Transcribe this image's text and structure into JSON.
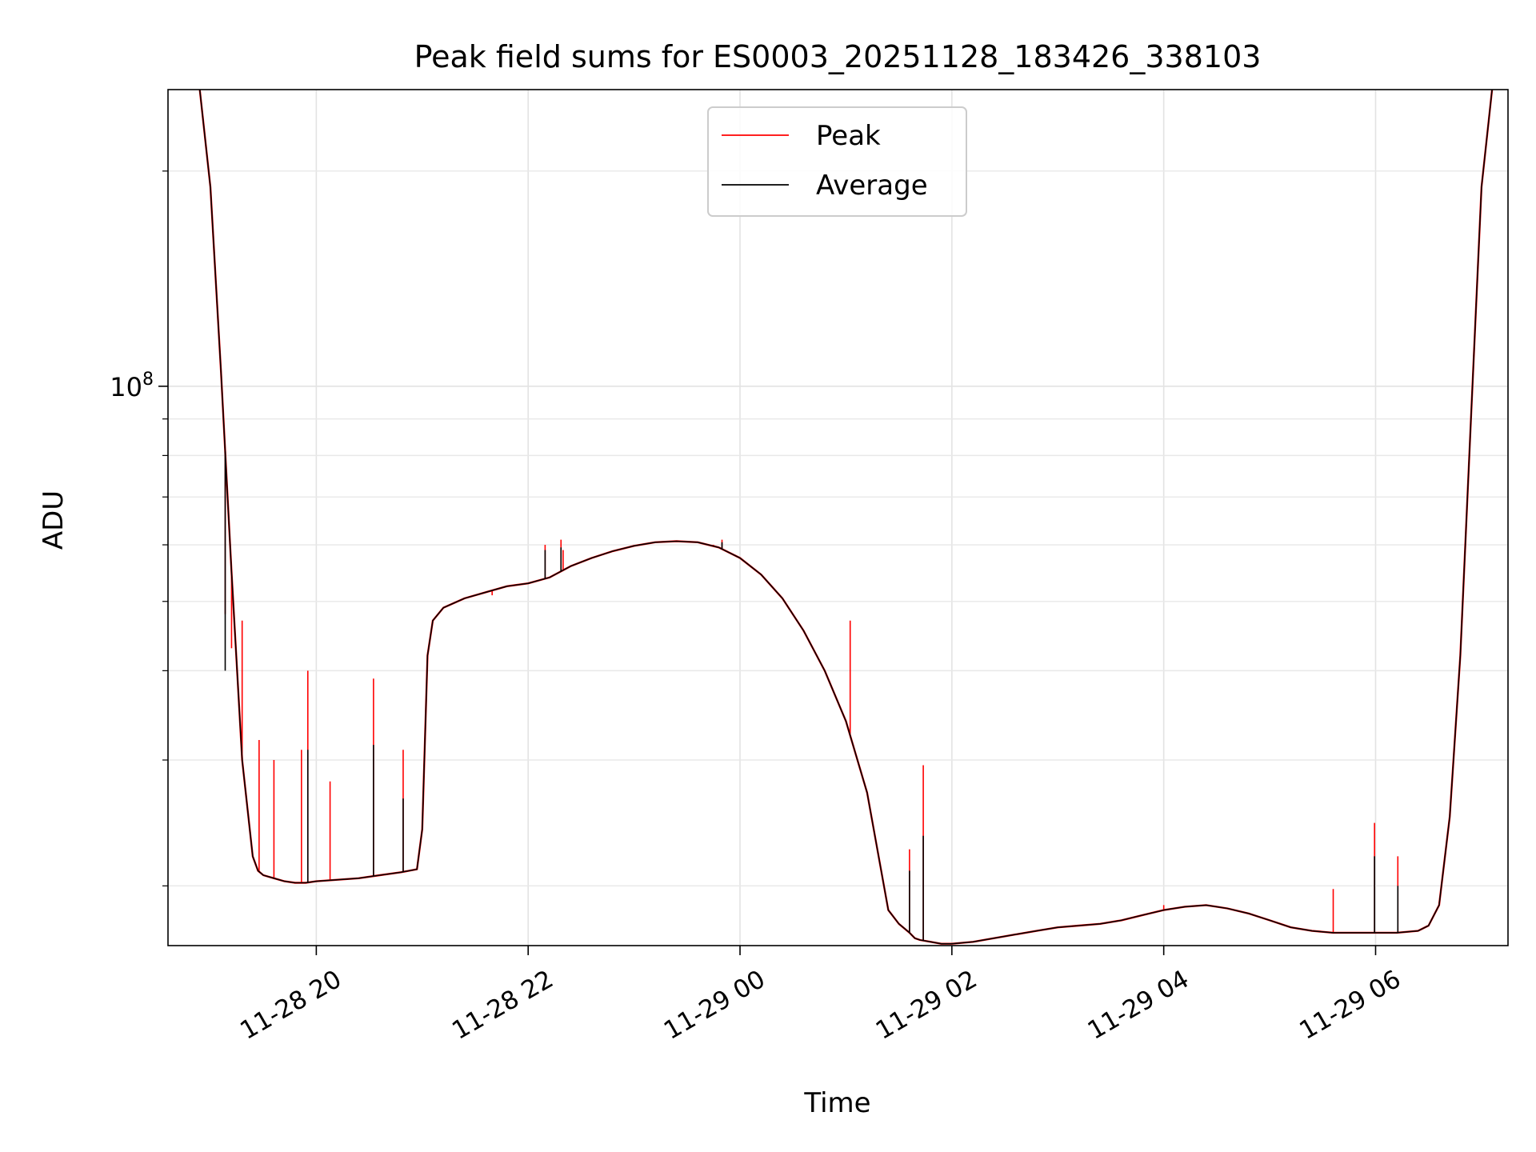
{
  "chart_data": {
    "type": "line",
    "title": "Peak field sums for ES0003_20251128_183426_338103",
    "xlabel": "Time",
    "ylabel": "ADU",
    "yscale": "log",
    "grid": true,
    "legend_position": "top-center",
    "x_units": "hours since 2025-11-28 00:00",
    "xlim": [
      18.6,
      31.25
    ],
    "ylim": [
      16500000,
      260000000
    ],
    "x_ticks": [
      {
        "value": 20,
        "label": "11-28 20"
      },
      {
        "value": 22,
        "label": "11-28 22"
      },
      {
        "value": 24,
        "label": "11-29 00"
      },
      {
        "value": 26,
        "label": "11-29 02"
      },
      {
        "value": 28,
        "label": "11-29 04"
      },
      {
        "value": 30,
        "label": "11-29 06"
      }
    ],
    "y_ticks": [
      {
        "value": 100000000,
        "base": "10",
        "exponent": "8"
      }
    ],
    "y_minor_ticks": [
      20000000,
      30000000,
      40000000,
      50000000,
      60000000,
      70000000,
      80000000,
      90000000,
      200000000
    ],
    "series": [
      {
        "name": "Peak",
        "color": "#ff0000",
        "x": [
          18.9,
          19.0,
          19.1,
          19.2,
          19.3,
          19.4,
          19.45,
          19.5,
          19.6,
          19.7,
          19.8,
          19.9,
          20.0,
          20.2,
          20.4,
          20.6,
          20.8,
          20.95,
          21.0,
          21.05,
          21.1,
          21.2,
          21.4,
          21.6,
          21.8,
          22.0,
          22.2,
          22.4,
          22.6,
          22.8,
          23.0,
          23.2,
          23.4,
          23.6,
          23.8,
          24.0,
          24.2,
          24.4,
          24.6,
          24.8,
          25.0,
          25.2,
          25.4,
          25.5,
          25.6,
          25.65,
          25.7,
          25.8,
          25.9,
          26.0,
          26.2,
          26.4,
          26.6,
          26.8,
          27.0,
          27.2,
          27.4,
          27.6,
          27.8,
          28.0,
          28.2,
          28.4,
          28.6,
          28.8,
          29.0,
          29.2,
          29.4,
          29.6,
          29.8,
          30.0,
          30.2,
          30.4,
          30.5,
          30.6,
          30.7,
          30.8,
          30.9,
          31.0,
          31.1
        ],
        "y": [
          260000000,
          190000000,
          105000000,
          55000000,
          30000000,
          22000000,
          21000000,
          20700000,
          20500000,
          20300000,
          20200000,
          20200000,
          20300000,
          20400000,
          20500000,
          20700000,
          20900000,
          21100000,
          24000000,
          42000000,
          47000000,
          49000000,
          50500000,
          51500000,
          52500000,
          53000000,
          54000000,
          56000000,
          57500000,
          58800000,
          59800000,
          60500000,
          60700000,
          60500000,
          59500000,
          57500000,
          54500000,
          50500000,
          45500000,
          40000000,
          34000000,
          27000000,
          18500000,
          17700000,
          17200000,
          16900000,
          16800000,
          16700000,
          16600000,
          16600000,
          16700000,
          16900000,
          17100000,
          17300000,
          17500000,
          17600000,
          17700000,
          17900000,
          18200000,
          18500000,
          18700000,
          18800000,
          18600000,
          18300000,
          17900000,
          17500000,
          17300000,
          17200000,
          17200000,
          17200000,
          17200000,
          17300000,
          17600000,
          18800000,
          25000000,
          42000000,
          90000000,
          190000000,
          260000000
        ],
        "spikes": [
          {
            "x": 19.14,
            "y": 48000000
          },
          {
            "x": 19.2,
            "y": 43000000
          },
          {
            "x": 19.3,
            "y": 47000000
          },
          {
            "x": 19.46,
            "y": 32000000
          },
          {
            "x": 19.6,
            "y": 30000000
          },
          {
            "x": 19.92,
            "y": 40000000
          },
          {
            "x": 19.86,
            "y": 31000000
          },
          {
            "x": 20.13,
            "y": 28000000
          },
          {
            "x": 20.54,
            "y": 39000000
          },
          {
            "x": 20.82,
            "y": 31000000
          },
          {
            "x": 21.33,
            "y": 50000000
          },
          {
            "x": 21.66,
            "y": 51000000
          },
          {
            "x": 22.16,
            "y": 60000000
          },
          {
            "x": 22.31,
            "y": 61000000
          },
          {
            "x": 22.33,
            "y": 59000000
          },
          {
            "x": 23.75,
            "y": 60000000
          },
          {
            "x": 23.83,
            "y": 61000000
          },
          {
            "x": 25.04,
            "y": 47000000
          },
          {
            "x": 25.6,
            "y": 22500000
          },
          {
            "x": 25.73,
            "y": 29500000
          },
          {
            "x": 28.0,
            "y": 18800000
          },
          {
            "x": 29.6,
            "y": 19800000
          },
          {
            "x": 29.99,
            "y": 24500000
          },
          {
            "x": 30.21,
            "y": 22000000
          },
          {
            "x": 30.6,
            "y": 19000000
          }
        ]
      },
      {
        "name": "Average",
        "color": "#000000",
        "x": [
          18.9,
          19.0,
          19.1,
          19.2,
          19.3,
          19.4,
          19.45,
          19.5,
          19.6,
          19.7,
          19.8,
          19.9,
          20.0,
          20.2,
          20.4,
          20.6,
          20.8,
          20.95,
          21.0,
          21.05,
          21.1,
          21.2,
          21.4,
          21.6,
          21.8,
          22.0,
          22.2,
          22.4,
          22.6,
          22.8,
          23.0,
          23.2,
          23.4,
          23.6,
          23.8,
          24.0,
          24.2,
          24.4,
          24.6,
          24.8,
          25.0,
          25.2,
          25.4,
          25.5,
          25.6,
          25.65,
          25.7,
          25.8,
          25.9,
          26.0,
          26.2,
          26.4,
          26.6,
          26.8,
          27.0,
          27.2,
          27.4,
          27.6,
          27.8,
          28.0,
          28.2,
          28.4,
          28.6,
          28.8,
          29.0,
          29.2,
          29.4,
          29.6,
          29.8,
          30.0,
          30.2,
          30.4,
          30.5,
          30.6,
          30.7,
          30.8,
          30.9,
          31.0,
          31.1
        ],
        "y": [
          260000000,
          190000000,
          105000000,
          55000000,
          30000000,
          22000000,
          21000000,
          20700000,
          20500000,
          20300000,
          20200000,
          20200000,
          20300000,
          20400000,
          20500000,
          20700000,
          20900000,
          21100000,
          24000000,
          42000000,
          47000000,
          49000000,
          50500000,
          51500000,
          52500000,
          53000000,
          54000000,
          56000000,
          57500000,
          58800000,
          59800000,
          60500000,
          60700000,
          60500000,
          59500000,
          57500000,
          54500000,
          50500000,
          45500000,
          40000000,
          34000000,
          27000000,
          18500000,
          17700000,
          17200000,
          16900000,
          16800000,
          16700000,
          16600000,
          16600000,
          16700000,
          16900000,
          17100000,
          17300000,
          17500000,
          17600000,
          17700000,
          17900000,
          18200000,
          18500000,
          18700000,
          18800000,
          18600000,
          18300000,
          17900000,
          17500000,
          17300000,
          17200000,
          17200000,
          17200000,
          17200000,
          17300000,
          17600000,
          18800000,
          25000000,
          42000000,
          90000000,
          190000000,
          260000000
        ],
        "spikes": [
          {
            "x": 19.14,
            "y": 40000000
          },
          {
            "x": 19.3,
            "y": 30000000
          },
          {
            "x": 19.92,
            "y": 31000000
          },
          {
            "x": 20.54,
            "y": 31500000
          },
          {
            "x": 20.82,
            "y": 26500000
          },
          {
            "x": 22.16,
            "y": 59000000
          },
          {
            "x": 22.31,
            "y": 59500000
          },
          {
            "x": 23.83,
            "y": 60500000
          },
          {
            "x": 25.73,
            "y": 23500000
          },
          {
            "x": 25.6,
            "y": 21000000
          },
          {
            "x": 29.99,
            "y": 22000000
          },
          {
            "x": 30.21,
            "y": 20000000
          }
        ]
      }
    ]
  }
}
